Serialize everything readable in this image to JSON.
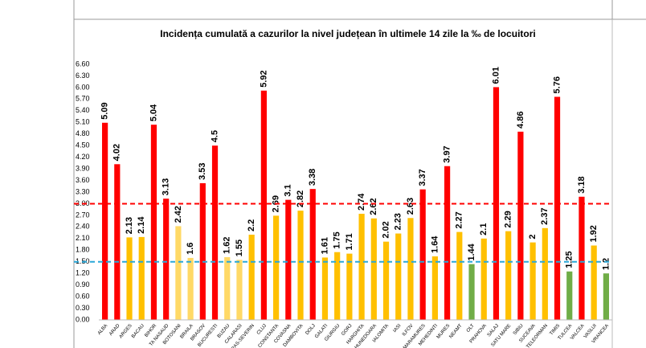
{
  "chart_data": {
    "type": "bar",
    "title": "Incidența cumulată a cazurilor la nivel județean în ultimele 14 zile la ‰ de locuitori",
    "categories": [
      "ALBA",
      "ARAD",
      "ARGES",
      "BACAU",
      "BIHOR",
      "TA NASAUD",
      "BOTOSANI",
      "BRAILA",
      "BRASOV",
      "BUCURESTI",
      "BUZAU",
      "CALARASI",
      "RAS-SEVERIN",
      "CLUJ",
      "CONSTANTA",
      "COVASNA",
      "DAMBOVITA",
      "DOLJ",
      "GALATI",
      "GIURGIU",
      "GORJ",
      "HARGHITA",
      "HUNEDOARA",
      "IALOMITA",
      "IASI",
      "ILFOV",
      "MARAMURES",
      "MEHEDINTI",
      "MURES",
      "NEAMT",
      "OLT",
      "PRAHOVA",
      "SALAJ",
      "SATU MARE",
      "SIBIU",
      "SUCEAVA",
      "TELEORMAN",
      "TIMIS",
      "TULCEA",
      "VALCEA",
      "VASLUI",
      "VRANCEA"
    ],
    "values": [
      5.09,
      4.02,
      2.13,
      2.14,
      5.04,
      3.13,
      2.42,
      1.6,
      3.53,
      4.5,
      1.62,
      1.55,
      2.2,
      5.92,
      2.69,
      3.1,
      2.82,
      3.38,
      1.61,
      1.75,
      1.71,
      2.74,
      2.62,
      2.02,
      2.23,
      2.63,
      3.37,
      1.64,
      3.97,
      2.27,
      1.44,
      2.1,
      6.01,
      2.29,
      4.86,
      2,
      2.37,
      5.76,
      1.25,
      3.18,
      1.92,
      1.2
    ],
    "colors": [
      "#ff0000",
      "#ff0000",
      "#ffc000",
      "#ffc000",
      "#ff0000",
      "#ff0000",
      "#ffd966",
      "#ffd966",
      "#ff0000",
      "#ff0000",
      "#ffd966",
      "#ffd966",
      "#ffc000",
      "#ff0000",
      "#ffc000",
      "#ff0000",
      "#ffc000",
      "#ff0000",
      "#ffc000",
      "#ffc000",
      "#ffc000",
      "#ffc000",
      "#ffc000",
      "#ffc000",
      "#ffc000",
      "#ffc000",
      "#ff0000",
      "#ffc000",
      "#ff0000",
      "#ffc000",
      "#70ad47",
      "#ffc000",
      "#ff0000",
      "#ffc000",
      "#ff0000",
      "#ffc000",
      "#ffc000",
      "#ff0000",
      "#70ad47",
      "#ff0000",
      "#ffc000",
      "#70ad47"
    ],
    "ylim": [
      0,
      6.6
    ],
    "yticks": [
      {
        "value": 0,
        "label": "0.00"
      },
      {
        "value": 0.3,
        "label": "0.30"
      },
      {
        "value": 0.6,
        "label": "0.60"
      },
      {
        "value": 0.9,
        "label": "0.90"
      },
      {
        "value": 1.2,
        "label": "1.20"
      },
      {
        "value": 1.5,
        "label": "1.50"
      },
      {
        "value": 1.8,
        "label": "1.80"
      },
      {
        "value": 2.1,
        "label": "2.10"
      },
      {
        "value": 2.4,
        "label": "2.40"
      },
      {
        "value": 2.7,
        "label": "2.70"
      },
      {
        "value": 3,
        "label": "3.00"
      },
      {
        "value": 3.3,
        "label": "3.30"
      },
      {
        "value": 3.6,
        "label": "3.60"
      },
      {
        "value": 3.9,
        "label": "3.90"
      },
      {
        "value": 4.2,
        "label": "4.20"
      },
      {
        "value": 4.5,
        "label": "4.50"
      },
      {
        "value": 4.8,
        "label": "4.80"
      },
      {
        "value": 5.1,
        "label": "5.10"
      },
      {
        "value": 5.4,
        "label": "5.40"
      },
      {
        "value": 5.7,
        "label": "5.70"
      },
      {
        "value": 6,
        "label": "6.00"
      },
      {
        "value": 6.3,
        "label": "6.30"
      },
      {
        "value": 6.6,
        "label": "6.60"
      }
    ],
    "reference_lines": [
      {
        "value": 3,
        "color": "#ff0000"
      },
      {
        "value": 1.5,
        "color": "#2aa7d8"
      }
    ],
    "grid": false
  }
}
